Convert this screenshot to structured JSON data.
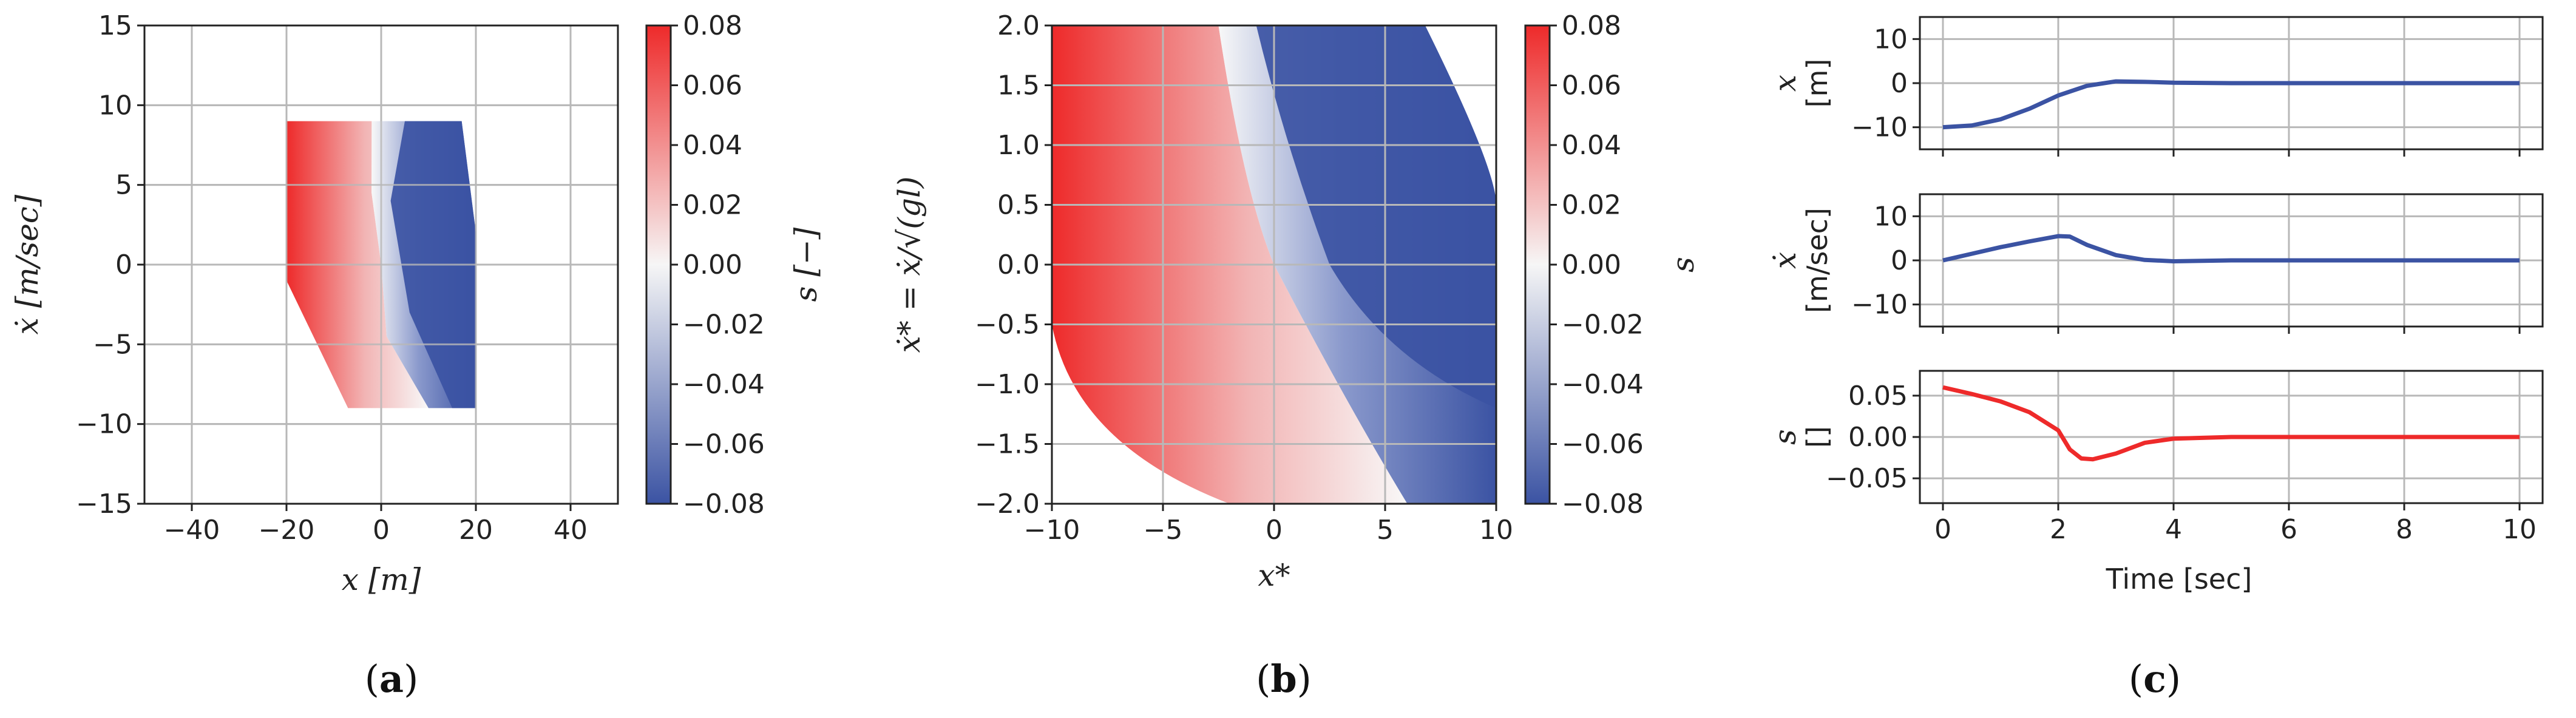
{
  "colors": {
    "red": "#ee2a2a",
    "blue": "#3b53a3",
    "white": "#f6f6f6",
    "grid": "#b8b8b8",
    "axis": "#222222"
  },
  "captions": {
    "a": "a",
    "b": "b",
    "c": "c"
  },
  "chart_data": [
    {
      "type": "heatmap",
      "xlabel": "x [m]",
      "ylabel": "ẋ [m/sec]",
      "xlim": [
        -50,
        50
      ],
      "ylim": [
        -15,
        15
      ],
      "x_ticks": [
        "−40",
        "−20",
        "0",
        "20",
        "40"
      ],
      "y_ticks": [
        "15",
        "10",
        "5",
        "0",
        "−5",
        "−10",
        "−15"
      ],
      "colorbar": {
        "label": "s [−]",
        "range": [
          -0.08,
          0.08
        ],
        "ticks": [
          "0.08",
          "0.06",
          "0.04",
          "0.02",
          "0.00",
          "−0.02",
          "−0.04",
          "−0.06",
          "−0.08"
        ]
      },
      "region": {
        "x": [
          -20,
          20
        ],
        "y": [
          -9,
          9
        ]
      },
      "switching_curve": [
        [
          -2,
          9
        ],
        [
          0,
          0
        ],
        [
          10,
          -9
        ]
      ],
      "grid": true
    },
    {
      "type": "heatmap",
      "xlabel": "x*",
      "ylabel": "ẋ* = ẋ/√(gl)",
      "xlim": [
        -10,
        10
      ],
      "ylim": [
        -2,
        2
      ],
      "x_ticks": [
        "−10",
        "−5",
        "0",
        "5",
        "10"
      ],
      "y_ticks": [
        "2.0",
        "1.5",
        "1.0",
        "0.5",
        "0.0",
        "−0.5",
        "−1.0",
        "−1.5",
        "−2.0"
      ],
      "colorbar": {
        "label": "s",
        "range": [
          -0.08,
          0.08
        ],
        "ticks": [
          "0.08",
          "0.06",
          "0.04",
          "0.02",
          "0.00",
          "−0.02",
          "−0.04",
          "−0.06",
          "−0.08"
        ]
      },
      "switching_curve": [
        [
          -2.5,
          2
        ],
        [
          0,
          0
        ],
        [
          6,
          -2
        ]
      ],
      "grid": true
    },
    {
      "type": "line",
      "xlabel": "Time [sec]",
      "x_ticks": [
        "0",
        "2",
        "4",
        "6",
        "8",
        "10"
      ],
      "xlim": [
        -0.4,
        10.4
      ],
      "subplots": [
        {
          "ylabel": "x",
          "yunit": "[m]",
          "ylim": [
            -15,
            15
          ],
          "y_ticks": [
            "10",
            "0",
            "−10"
          ],
          "color": "blue",
          "x": [
            0,
            0.5,
            1,
            1.5,
            2,
            2.5,
            3,
            3.5,
            4,
            5,
            6,
            8,
            10
          ],
          "values": [
            -10,
            -9.6,
            -8.2,
            -5.8,
            -2.8,
            -0.6,
            0.4,
            0.3,
            0.1,
            0,
            0,
            0,
            0
          ]
        },
        {
          "ylabel": "ẋ",
          "yunit": "[m/sec]",
          "ylim": [
            -15,
            15
          ],
          "y_ticks": [
            "10",
            "0",
            "−10"
          ],
          "color": "blue",
          "x": [
            0,
            0.5,
            1,
            1.5,
            2,
            2.2,
            2.5,
            3,
            3.5,
            4,
            5,
            6,
            8,
            10
          ],
          "values": [
            0,
            1.5,
            3,
            4.3,
            5.5,
            5.4,
            3.5,
            1.2,
            0.1,
            -0.2,
            0,
            0,
            0,
            0
          ]
        },
        {
          "ylabel": "s",
          "yunit": "[]",
          "ylim": [
            -0.08,
            0.08
          ],
          "y_ticks": [
            "0.05",
            "0.00",
            "−0.05"
          ],
          "color": "red",
          "x": [
            0,
            0.5,
            1,
            1.5,
            2,
            2.2,
            2.4,
            2.6,
            3,
            3.5,
            4,
            5,
            6,
            8,
            10
          ],
          "values": [
            0.06,
            0.052,
            0.043,
            0.03,
            0.008,
            -0.015,
            -0.026,
            -0.027,
            -0.02,
            -0.007,
            -0.002,
            0,
            0,
            0,
            0
          ]
        }
      ],
      "grid": true
    }
  ]
}
